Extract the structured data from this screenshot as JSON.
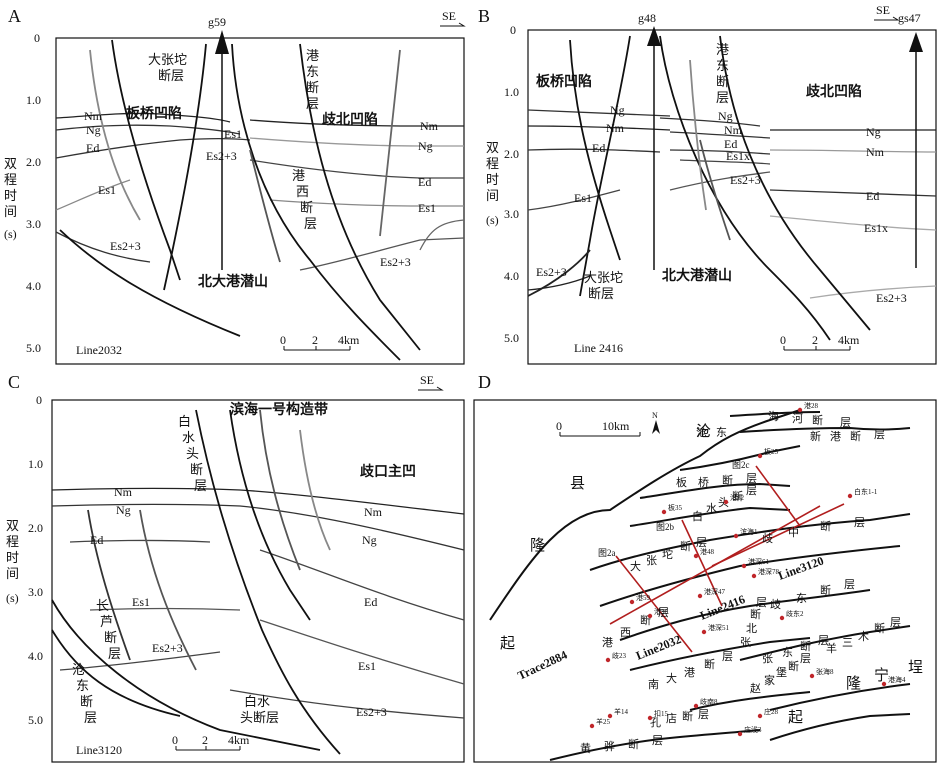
{
  "panel_a": {
    "letter": "A",
    "direction": "SE",
    "well": "g59",
    "line": "Line2032",
    "ticks": [
      "0",
      "1.0",
      "2.0",
      "3.0",
      "4.0",
      "5.0"
    ],
    "axis_label_chars": [
      "双",
      "程",
      "时",
      "间",
      "(s)"
    ],
    "fault_dazhangtuo": [
      "大张坨",
      "断层"
    ],
    "fault_gangdong": [
      "港",
      "东",
      "断",
      "层"
    ],
    "fault_gangxi": [
      "港",
      "西",
      "断",
      "层"
    ],
    "region_banqiao": "板桥凹陷",
    "region_qibei": "歧北凹陷",
    "buried_hill": "北大港潜山",
    "layers": [
      "Nm",
      "Ng",
      "Ed",
      "Es1",
      "Es2+3",
      "Es1",
      "Es2+3",
      "Nm",
      "Ng",
      "Ed",
      "Es1",
      "Es2+3"
    ],
    "scale": [
      "0",
      "2",
      "4km"
    ]
  },
  "panel_b": {
    "letter": "B",
    "direction": "SE",
    "well_left": "g48",
    "well_right": "gs47",
    "line": "Line 2416",
    "ticks": [
      "0",
      "1.0",
      "2.0",
      "3.0",
      "4.0",
      "5.0"
    ],
    "axis_label_chars": [
      "双",
      "程",
      "时",
      "间",
      "(s)"
    ],
    "fault_gangdong": [
      "港",
      "东",
      "断",
      "层"
    ],
    "fault_dazhangtuo": [
      "大张坨",
      "断层"
    ],
    "region_banqiao": "板桥凹陷",
    "region_qibei": "歧北凹陷",
    "buried_hill": "北大港潜山",
    "layers": [
      "Ng",
      "Nm",
      "Ed",
      "Es1",
      "Es2+3",
      "Ng",
      "Nm",
      "Ed",
      "Es1x",
      "Es2+3",
      "Ng",
      "Nm",
      "Ed",
      "Es1x",
      "Es2+3"
    ],
    "scale": [
      "0",
      "2",
      "4km"
    ]
  },
  "panel_c": {
    "letter": "C",
    "direction": "SE",
    "line": "Line3120",
    "ticks": [
      "0",
      "1.0",
      "2.0",
      "3.0",
      "4.0",
      "5.0"
    ],
    "axis_label_chars": [
      "双",
      "程",
      "时",
      "间",
      "(s)"
    ],
    "zone": "滨海一号构造带",
    "fault_baishuitou": [
      "白",
      "水",
      "头",
      "断",
      "层"
    ],
    "fault_baishuitou2": [
      "白水",
      "头断层"
    ],
    "fault_changlu": [
      "长",
      "芦",
      "断",
      "层"
    ],
    "fault_cangdong": [
      "沧",
      "东",
      "断",
      "层"
    ],
    "region_qikou": "歧口主凹",
    "layers": [
      "Nm",
      "Ng",
      "Ed",
      "Es1",
      "Es2+3",
      "Nm",
      "Ng",
      "Ed",
      "Es1",
      "Es2+3"
    ],
    "scale": [
      "0",
      "2",
      "4km"
    ]
  },
  "panel_d": {
    "letter": "D",
    "scale": [
      "0",
      "10km"
    ],
    "north": "N",
    "lines": [
      "Trace2884",
      "Line2032",
      "Line2416",
      "Line3120"
    ],
    "figs": [
      "图2a",
      "图2b",
      "图2c"
    ],
    "big_chars": [
      "沧",
      "县",
      "隆",
      "起",
      "隆",
      "宁",
      "埕",
      "起"
    ],
    "faults": {
      "haihe": [
        "海",
        "河",
        "断",
        "层"
      ],
      "xingang": [
        "新",
        "港",
        "断",
        "层"
      ],
      "cangdong": [
        "沧",
        "东"
      ],
      "banqiao": [
        "板",
        "桥",
        "断",
        "层"
      ],
      "baishuitou": [
        "白",
        "水",
        "头",
        "断",
        "层"
      ],
      "dazhangtuo": [
        "大",
        "张",
        "坨",
        "断",
        "层"
      ],
      "gangxi": [
        "港",
        "西",
        "断",
        "层"
      ],
      "qizhong": [
        "歧",
        "中",
        "断",
        "层"
      ],
      "qidong": [
        "歧",
        "东",
        "断",
        "层"
      ],
      "zhangdong": [
        "张",
        "东",
        "断",
        "层"
      ],
      "zhao": [
        "赵",
        "家",
        "堡",
        "断",
        "层"
      ],
      "yangsanmu": [
        "羊",
        "三",
        "木",
        "断",
        "层"
      ],
      "nandagang": [
        "南",
        "大",
        "港",
        "断",
        "层"
      ],
      "zhaobei": [
        "张",
        "北",
        "断",
        "层"
      ],
      "kongdian": [
        "孔",
        "店",
        "断",
        "层"
      ],
      "huangye": [
        "黄",
        "骅",
        "断",
        "层"
      ]
    },
    "wells": [
      "港28",
      "板25",
      "白东1-1",
      "板35",
      "港82",
      "滨海1",
      "港48",
      "港深61",
      "港深78",
      "港深47",
      "港59",
      "港30",
      "歧东2",
      "港深51",
      "歧23",
      "港海4",
      "羊14",
      "扣15",
      "歧南8",
      "庄28",
      "羊25",
      "庄浅3",
      "张海8"
    ]
  }
}
